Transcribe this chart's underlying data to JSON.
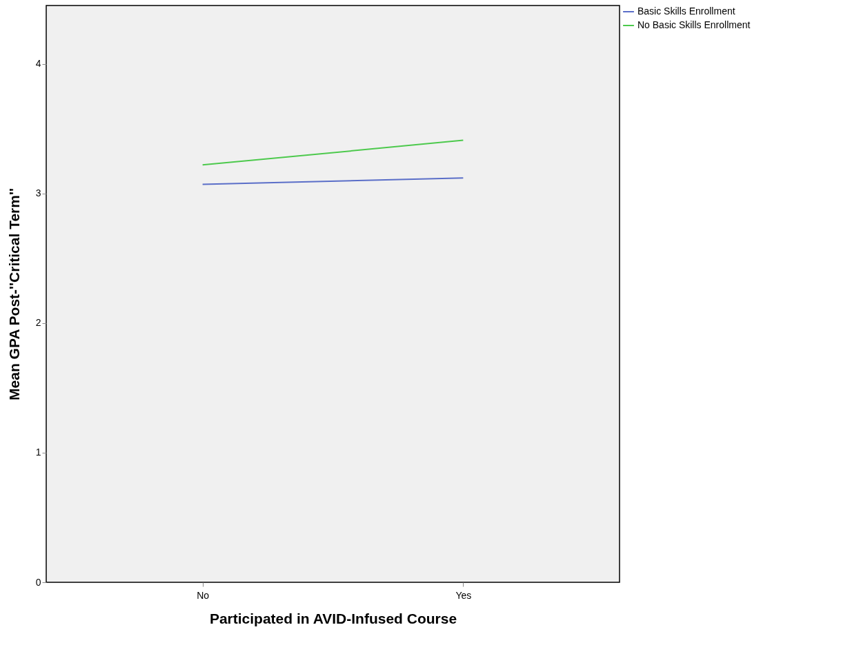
{
  "chart_data": {
    "type": "line",
    "xlabel": "Participated in AVID-Infused Course",
    "ylabel": "Mean GPA Post-''Critical Term''",
    "categories": [
      "No",
      "Yes"
    ],
    "series": [
      {
        "name": "Basic Skills Enrollment",
        "color": "#5a6ec8",
        "values": [
          3.07,
          3.12
        ]
      },
      {
        "name": "No Basic Skills Enrollment",
        "color": "#4cc94c",
        "values": [
          3.22,
          3.41
        ]
      }
    ],
    "ylim": [
      0,
      4.45
    ],
    "yticks": [
      0,
      1,
      2,
      3,
      4
    ],
    "grid": false,
    "legend": "top right",
    "marker": "none",
    "line_style": "solid"
  }
}
